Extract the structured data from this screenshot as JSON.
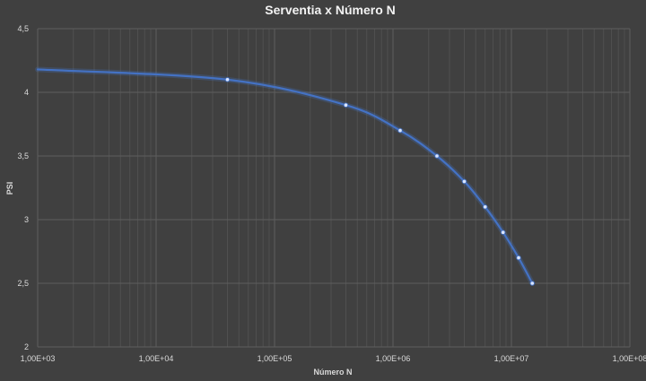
{
  "chart_data": {
    "type": "scatter",
    "title": "Serventia x Número N",
    "xlabel": "Número N",
    "ylabel": "PSI",
    "x_scale": "log",
    "xlim": [
      1000,
      100000000
    ],
    "ylim": [
      2,
      4.5
    ],
    "x_ticks": [
      1000,
      10000,
      100000,
      1000000,
      10000000,
      100000000
    ],
    "x_tick_labels": [
      "1,00E+03",
      "1,00E+04",
      "1,00E+05",
      "1,00E+06",
      "1,00E+07",
      "1,00E+08"
    ],
    "y_ticks": [
      2,
      2.5,
      3,
      3.5,
      4,
      4.5
    ],
    "y_tick_labels": [
      "2",
      "2,5",
      "3",
      "3,5",
      "4",
      "4,5"
    ],
    "grid": true,
    "line_style": "smoothed",
    "series": [
      {
        "color": "#4472c4",
        "x": [
          1000,
          40000,
          400000,
          1150000,
          2350000,
          4000000,
          6000000,
          8500000,
          11500000,
          15000000
        ],
        "y": [
          4.18,
          4.1,
          3.9,
          3.7,
          3.5,
          3.3,
          3.1,
          2.9,
          2.7,
          2.5
        ]
      }
    ]
  }
}
